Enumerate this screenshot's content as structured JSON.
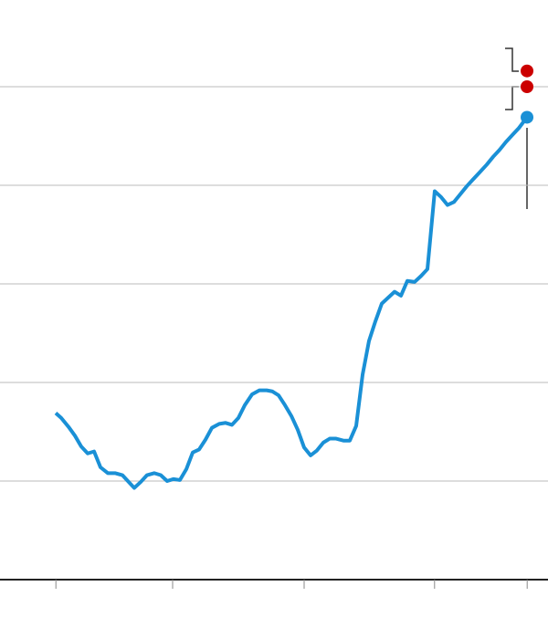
{
  "chart_data": {
    "type": "line",
    "x": [
      10.17,
      11.17,
      12.5,
      13.67,
      14.83,
      16,
      17.17,
      18.33,
      19.67,
      21,
      22.33,
      23.33,
      24.5,
      25.67,
      26.83,
      28.17,
      29.33,
      30.5,
      31.67,
      32.83,
      34,
      35.17,
      36.33,
      37.5,
      38.67,
      40,
      41.17,
      42.33,
      43.5,
      44.67,
      46,
      47.33,
      48.67,
      49.67,
      50.83,
      52,
      53.17,
      54.33,
      55.5,
      56.67,
      57.83,
      59,
      60.17,
      61.33,
      62.67,
      63.83,
      65,
      66.17,
      67.33,
      68.5,
      69.67,
      70.83,
      72,
      73.17,
      74.33,
      75.67,
      76.83,
      78,
      79.33,
      80.5,
      81.67,
      82.83,
      84,
      85.17,
      86.33,
      87.5,
      88.83,
      90,
      91.17,
      92.33,
      93.5,
      94.67,
      96.17
    ],
    "series": [
      {
        "color": "#1a90d6",
        "values": [
          1.69,
          1.64,
          1.55,
          1.46,
          1.35,
          1.28,
          1.3,
          1.14,
          1.08,
          1.08,
          1.06,
          1.0,
          0.93,
          0.99,
          1.06,
          1.08,
          1.06,
          1.0,
          1.02,
          1.01,
          1.12,
          1.29,
          1.32,
          1.42,
          1.54,
          1.58,
          1.59,
          1.57,
          1.64,
          1.77,
          1.88,
          1.92,
          1.92,
          1.91,
          1.87,
          1.77,
          1.66,
          1.52,
          1.34,
          1.26,
          1.31,
          1.39,
          1.43,
          1.43,
          1.41,
          1.41,
          1.56,
          2.08,
          2.42,
          2.62,
          2.8,
          2.86,
          2.92,
          2.88,
          3.03,
          3.02,
          3.08,
          3.15,
          3.94,
          3.88,
          3.8,
          3.83,
          3.91,
          3.99,
          4.06,
          4.13,
          4.21,
          4.29,
          4.36,
          4.44,
          4.51,
          4.58,
          4.69
        ]
      }
    ],
    "points": {
      "color": "#cc0000",
      "x": [
        96.17,
        96.17
      ],
      "values": [
        5.16,
        5.0
      ]
    },
    "xlim": [
      0,
      100
    ],
    "xticks": [
      10.2,
      31.5,
      55.5,
      79.3,
      96.2
    ],
    "ylim": [
      0,
      5.5
    ],
    "yticks": [
      1,
      2,
      3,
      4,
      5
    ],
    "grid": true
  }
}
